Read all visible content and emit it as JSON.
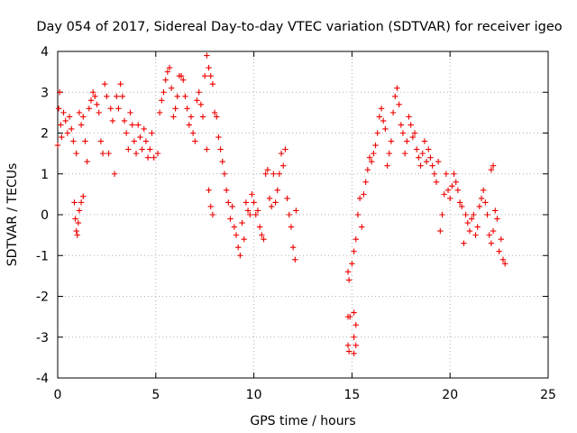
{
  "chart_data": {
    "type": "scatter",
    "title": "Day 054 of 2017, Sidereal Day-to-day VTEC variation (SDTVAR) for receiver igeo",
    "xlabel": "GPS time / hours",
    "ylabel": "SDTVAR / TECUs",
    "xlim": [
      0,
      25
    ],
    "ylim": [
      -4,
      4
    ],
    "xticks": [
      "0",
      "5",
      "10",
      "15",
      "20",
      "25"
    ],
    "yticks": [
      "-4",
      "-3",
      "-2",
      "-1",
      "0",
      "1",
      "2",
      "3",
      "4"
    ],
    "grid": true,
    "marker": "+",
    "color": "#ee0000",
    "series": [
      {
        "name": "SDTVAR",
        "points": [
          [
            0.0,
            1.7
          ],
          [
            0.05,
            2.6
          ],
          [
            0.1,
            3.0
          ],
          [
            0.15,
            2.2
          ],
          [
            0.2,
            1.9
          ],
          [
            0.3,
            2.5
          ],
          [
            0.4,
            2.3
          ],
          [
            0.5,
            2.0
          ],
          [
            0.6,
            2.4
          ],
          [
            0.7,
            2.1
          ],
          [
            0.8,
            1.8
          ],
          [
            0.85,
            0.3
          ],
          [
            0.9,
            -0.1
          ],
          [
            0.95,
            -0.4
          ],
          [
            1.0,
            -0.5
          ],
          [
            1.05,
            -0.2
          ],
          [
            1.1,
            0.1
          ],
          [
            1.2,
            0.3
          ],
          [
            1.3,
            0.45
          ],
          [
            0.95,
            1.5
          ],
          [
            1.1,
            2.5
          ],
          [
            1.2,
            2.2
          ],
          [
            1.3,
            2.4
          ],
          [
            1.4,
            1.8
          ],
          [
            1.5,
            1.3
          ],
          [
            1.6,
            2.6
          ],
          [
            1.7,
            2.8
          ],
          [
            1.8,
            3.0
          ],
          [
            1.9,
            2.9
          ],
          [
            2.0,
            2.7
          ],
          [
            2.1,
            2.5
          ],
          [
            2.2,
            1.8
          ],
          [
            2.3,
            1.5
          ],
          [
            2.4,
            3.2
          ],
          [
            2.5,
            2.9
          ],
          [
            2.6,
            1.5
          ],
          [
            2.7,
            2.6
          ],
          [
            2.8,
            2.3
          ],
          [
            2.9,
            1.0
          ],
          [
            3.0,
            2.9
          ],
          [
            3.1,
            2.6
          ],
          [
            3.2,
            3.2
          ],
          [
            3.3,
            2.9
          ],
          [
            3.4,
            2.3
          ],
          [
            3.5,
            2.0
          ],
          [
            3.6,
            1.6
          ],
          [
            3.7,
            2.5
          ],
          [
            3.8,
            2.2
          ],
          [
            3.9,
            1.8
          ],
          [
            4.0,
            1.5
          ],
          [
            4.1,
            2.2
          ],
          [
            4.2,
            1.9
          ],
          [
            4.3,
            1.6
          ],
          [
            4.4,
            2.1
          ],
          [
            4.5,
            1.8
          ],
          [
            4.6,
            1.4
          ],
          [
            4.7,
            1.6
          ],
          [
            4.8,
            2.0
          ],
          [
            4.9,
            1.4
          ],
          [
            5.1,
            1.5
          ],
          [
            5.2,
            2.5
          ],
          [
            5.3,
            2.8
          ],
          [
            5.4,
            3.0
          ],
          [
            5.5,
            3.3
          ],
          [
            5.6,
            3.5
          ],
          [
            5.7,
            3.6
          ],
          [
            5.8,
            3.1
          ],
          [
            5.9,
            2.4
          ],
          [
            6.0,
            2.6
          ],
          [
            6.1,
            2.9
          ],
          [
            6.2,
            3.4
          ],
          [
            6.3,
            3.4
          ],
          [
            6.4,
            3.3
          ],
          [
            6.5,
            2.9
          ],
          [
            6.6,
            2.6
          ],
          [
            6.7,
            2.2
          ],
          [
            6.8,
            2.4
          ],
          [
            6.9,
            2.0
          ],
          [
            7.0,
            1.8
          ],
          [
            7.1,
            2.8
          ],
          [
            7.2,
            3.0
          ],
          [
            7.3,
            2.7
          ],
          [
            7.4,
            2.4
          ],
          [
            7.5,
            3.4
          ],
          [
            7.6,
            3.9
          ],
          [
            7.7,
            3.6
          ],
          [
            7.8,
            3.4
          ],
          [
            7.9,
            3.2
          ],
          [
            8.0,
            2.5
          ],
          [
            7.6,
            1.6
          ],
          [
            7.7,
            0.6
          ],
          [
            7.8,
            0.2
          ],
          [
            7.9,
            0.0
          ],
          [
            8.1,
            2.4
          ],
          [
            8.2,
            1.9
          ],
          [
            8.3,
            1.6
          ],
          [
            8.4,
            1.3
          ],
          [
            8.5,
            1.0
          ],
          [
            8.6,
            0.6
          ],
          [
            8.7,
            0.3
          ],
          [
            8.8,
            -0.1
          ],
          [
            8.9,
            0.2
          ],
          [
            9.0,
            -0.3
          ],
          [
            9.1,
            -0.5
          ],
          [
            9.2,
            -0.8
          ],
          [
            9.3,
            -1.0
          ],
          [
            9.4,
            -0.2
          ],
          [
            9.5,
            -0.6
          ],
          [
            9.6,
            0.3
          ],
          [
            9.7,
            0.1
          ],
          [
            9.8,
            0.0
          ],
          [
            9.9,
            0.5
          ],
          [
            10.0,
            0.3
          ],
          [
            10.1,
            0.0
          ],
          [
            10.2,
            0.1
          ],
          [
            10.3,
            -0.3
          ],
          [
            10.4,
            -0.5
          ],
          [
            10.5,
            -0.6
          ],
          [
            10.6,
            1.0
          ],
          [
            10.7,
            1.1
          ],
          [
            10.8,
            0.4
          ],
          [
            10.9,
            0.2
          ],
          [
            11.0,
            1.0
          ],
          [
            11.1,
            0.3
          ],
          [
            11.2,
            0.6
          ],
          [
            11.3,
            1.0
          ],
          [
            11.4,
            1.5
          ],
          [
            11.5,
            1.2
          ],
          [
            11.6,
            1.6
          ],
          [
            11.7,
            0.4
          ],
          [
            11.8,
            0.0
          ],
          [
            11.9,
            -0.3
          ],
          [
            12.0,
            -0.8
          ],
          [
            12.1,
            -1.1
          ],
          [
            12.15,
            0.1
          ],
          [
            14.8,
            -1.4
          ],
          [
            14.85,
            -1.6
          ],
          [
            14.8,
            -2.5
          ],
          [
            14.9,
            -2.5
          ],
          [
            14.8,
            -3.2
          ],
          [
            14.85,
            -3.35
          ],
          [
            15.0,
            -1.2
          ],
          [
            15.1,
            -0.9
          ],
          [
            15.2,
            -0.6
          ],
          [
            15.1,
            -2.4
          ],
          [
            15.2,
            -2.7
          ],
          [
            15.1,
            -3.0
          ],
          [
            15.2,
            -3.2
          ],
          [
            15.1,
            -3.4
          ],
          [
            15.3,
            0.0
          ],
          [
            15.4,
            0.4
          ],
          [
            15.5,
            -0.3
          ],
          [
            15.6,
            0.5
          ],
          [
            15.7,
            0.8
          ],
          [
            15.8,
            1.1
          ],
          [
            15.9,
            1.4
          ],
          [
            16.0,
            1.3
          ],
          [
            16.1,
            1.5
          ],
          [
            16.2,
            1.7
          ],
          [
            16.3,
            2.0
          ],
          [
            16.4,
            2.4
          ],
          [
            16.5,
            2.6
          ],
          [
            16.6,
            2.3
          ],
          [
            16.7,
            2.1
          ],
          [
            16.8,
            1.2
          ],
          [
            16.9,
            1.5
          ],
          [
            17.0,
            1.8
          ],
          [
            17.1,
            2.5
          ],
          [
            17.2,
            2.9
          ],
          [
            17.3,
            3.1
          ],
          [
            17.4,
            2.7
          ],
          [
            17.5,
            2.2
          ],
          [
            17.6,
            2.0
          ],
          [
            17.7,
            1.5
          ],
          [
            17.8,
            1.8
          ],
          [
            17.9,
            2.4
          ],
          [
            18.0,
            2.2
          ],
          [
            18.1,
            1.9
          ],
          [
            18.2,
            2.0
          ],
          [
            18.3,
            1.6
          ],
          [
            18.4,
            1.4
          ],
          [
            18.5,
            1.2
          ],
          [
            18.6,
            1.5
          ],
          [
            18.7,
            1.8
          ],
          [
            18.8,
            1.3
          ],
          [
            18.9,
            1.6
          ],
          [
            19.0,
            1.4
          ],
          [
            19.1,
            1.2
          ],
          [
            19.2,
            1.0
          ],
          [
            19.3,
            0.8
          ],
          [
            19.4,
            1.3
          ],
          [
            19.5,
            -0.4
          ],
          [
            19.6,
            0.0
          ],
          [
            19.7,
            0.5
          ],
          [
            19.8,
            1.0
          ],
          [
            19.9,
            0.6
          ],
          [
            20.0,
            0.4
          ],
          [
            20.1,
            0.7
          ],
          [
            20.2,
            1.0
          ],
          [
            20.3,
            0.8
          ],
          [
            20.4,
            0.6
          ],
          [
            20.5,
            0.3
          ],
          [
            20.6,
            0.2
          ],
          [
            20.7,
            -0.7
          ],
          [
            20.8,
            0.0
          ],
          [
            20.9,
            -0.2
          ],
          [
            21.0,
            -0.4
          ],
          [
            21.1,
            -0.1
          ],
          [
            21.2,
            0.0
          ],
          [
            21.3,
            -0.5
          ],
          [
            21.4,
            -0.3
          ],
          [
            21.5,
            0.2
          ],
          [
            21.6,
            0.4
          ],
          [
            21.7,
            0.6
          ],
          [
            21.8,
            0.3
          ],
          [
            21.9,
            0.0
          ],
          [
            22.0,
            -0.5
          ],
          [
            22.1,
            -0.7
          ],
          [
            22.2,
            -0.4
          ],
          [
            22.3,
            0.1
          ],
          [
            22.4,
            -0.1
          ],
          [
            22.5,
            -0.9
          ],
          [
            22.6,
            -0.6
          ],
          [
            22.7,
            -1.1
          ],
          [
            22.8,
            -1.2
          ],
          [
            22.1,
            1.1
          ],
          [
            22.2,
            1.2
          ]
        ]
      }
    ]
  }
}
